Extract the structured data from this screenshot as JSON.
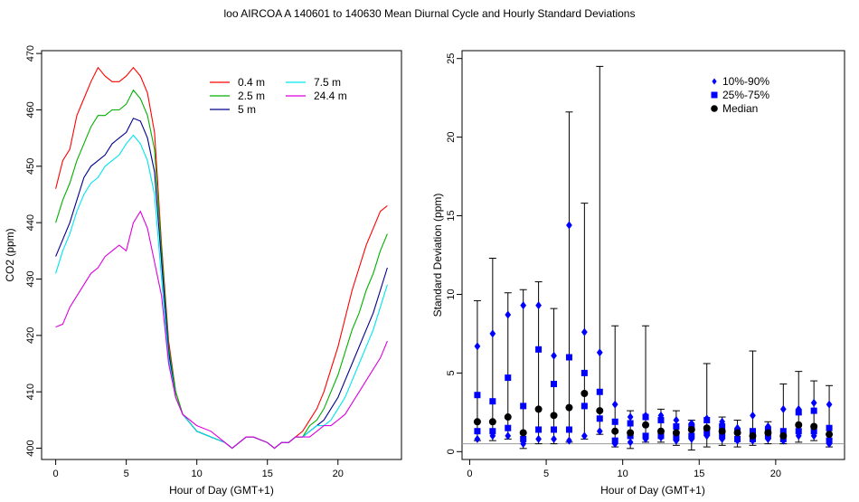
{
  "title": "loo   AIRCOA A   140601 to 140630   Mean Diurnal Cycle and Hourly Standard Deviations",
  "chart_data": [
    {
      "type": "line",
      "xlabel": "Hour of Day (GMT+1)",
      "ylabel": "CO2 (ppm)",
      "xlim": [
        -1,
        24.5
      ],
      "ylim": [
        398,
        470.5
      ],
      "xticks": [
        0,
        5,
        10,
        15,
        20
      ],
      "yticks": [
        400,
        410,
        420,
        430,
        440,
        450,
        460,
        470
      ],
      "legend_position": "top-center",
      "series": [
        {
          "name": "0.4 m",
          "color": "#ff0000",
          "x": [
            0,
            0.5,
            1,
            1.5,
            2,
            2.5,
            3,
            3.5,
            4,
            4.5,
            5,
            5.5,
            6,
            6.5,
            7,
            7.5,
            8,
            8.5,
            9,
            10,
            11,
            12,
            12.5,
            13,
            13.5,
            14,
            15,
            15.5,
            16,
            16.5,
            17,
            17.5,
            18,
            18.5,
            19,
            19.5,
            20,
            20.5,
            21,
            21.5,
            22,
            22.5,
            23,
            23.5
          ],
          "y": [
            446,
            451,
            453,
            459,
            462,
            465,
            467.5,
            466,
            465,
            465,
            466,
            467.5,
            466,
            463,
            456,
            436,
            419,
            410,
            406,
            403,
            402,
            401,
            400,
            401,
            402,
            402,
            401,
            400,
            401,
            401,
            402,
            403,
            405,
            407,
            410,
            414,
            418,
            423,
            428,
            432,
            436,
            439,
            442,
            443
          ]
        },
        {
          "name": "2.5 m",
          "color": "#00b000",
          "x": [
            0,
            0.5,
            1,
            1.5,
            2,
            2.5,
            3,
            3.5,
            4,
            4.5,
            5,
            5.5,
            6,
            6.5,
            7,
            7.5,
            8,
            8.5,
            9,
            10,
            11,
            12,
            12.5,
            13,
            13.5,
            14,
            15,
            15.5,
            16,
            16.5,
            17,
            17.5,
            18,
            18.5,
            19,
            19.5,
            20,
            20.5,
            21,
            21.5,
            22,
            22.5,
            23,
            23.5
          ],
          "y": [
            440,
            444,
            447,
            451,
            454,
            457,
            459,
            459,
            460,
            460,
            461,
            463.5,
            462,
            459,
            453,
            435,
            418,
            410,
            406,
            403,
            402,
            401,
            400,
            401,
            402,
            402,
            401,
            400,
            401,
            401,
            402,
            402,
            404,
            405,
            407,
            410,
            413,
            417,
            421,
            424,
            428,
            431,
            435,
            438
          ]
        },
        {
          "name": "5 m",
          "color": "#00008b",
          "x": [
            0,
            0.5,
            1,
            1.5,
            2,
            2.5,
            3,
            3.5,
            4,
            4.5,
            5,
            5.5,
            6,
            6.5,
            7,
            7.5,
            8,
            8.5,
            9,
            10,
            11,
            12,
            12.5,
            13,
            13.5,
            14,
            15,
            15.5,
            16,
            16.5,
            17,
            17.5,
            18,
            18.5,
            19,
            19.5,
            20,
            20.5,
            21,
            21.5,
            22,
            22.5,
            23,
            23.5
          ],
          "y": [
            434,
            437,
            440,
            444,
            448,
            450,
            451,
            452,
            454,
            455,
            456,
            458.5,
            458,
            455,
            449,
            433,
            417,
            409,
            406,
            403,
            402,
            401,
            400,
            401,
            402,
            402,
            401,
            400,
            401,
            401,
            402,
            402,
            403,
            404,
            405,
            407,
            409,
            412,
            415,
            418,
            421,
            424,
            428,
            432
          ]
        },
        {
          "name": "7.5 m",
          "color": "#00e5ee",
          "x": [
            0,
            0.5,
            1,
            1.5,
            2,
            2.5,
            3,
            3.5,
            4,
            4.5,
            5,
            5.5,
            6,
            6.5,
            7,
            7.5,
            8,
            8.5,
            9,
            10,
            11,
            12,
            12.5,
            13,
            13.5,
            14,
            15,
            15.5,
            16,
            16.5,
            17,
            17.5,
            18,
            18.5,
            19,
            19.5,
            20,
            20.5,
            21,
            21.5,
            22,
            22.5,
            23,
            23.5
          ],
          "y": [
            431,
            435,
            438,
            442,
            445,
            447,
            448,
            450,
            451,
            452,
            454,
            455.5,
            454,
            451,
            445,
            430,
            416,
            409,
            406,
            403,
            402,
            401,
            400,
            401,
            402,
            402,
            401,
            400,
            401,
            401,
            402,
            402,
            403,
            404,
            404,
            405,
            407,
            409,
            412,
            415,
            418,
            421,
            425,
            429
          ]
        },
        {
          "name": "24.4 m",
          "color": "#dd00dd",
          "x": [
            0,
            0.5,
            1,
            1.5,
            2,
            2.5,
            3,
            3.5,
            4,
            4.5,
            5,
            5.5,
            6,
            6.5,
            7,
            7.5,
            8,
            8.5,
            9,
            10,
            11,
            12,
            12.5,
            13,
            13.5,
            14,
            15,
            15.5,
            16,
            16.5,
            17,
            17.5,
            18,
            18.5,
            19,
            19.5,
            20,
            20.5,
            21,
            21.5,
            22,
            22.5,
            23,
            23.5
          ],
          "y": [
            421.5,
            422,
            425,
            427,
            429,
            431,
            432,
            434,
            435,
            436,
            435,
            440,
            442,
            439,
            433,
            427,
            415,
            409,
            406,
            404,
            403,
            401,
            400,
            401,
            402,
            402,
            401,
            400,
            401,
            401,
            402,
            402,
            402,
            403,
            404,
            404,
            405,
            406,
            408,
            410,
            412,
            414,
            416,
            419
          ]
        }
      ]
    },
    {
      "type": "scatter",
      "xlabel": "Hour of Day (GMT+1)",
      "ylabel": "Standard Deviation (ppm)",
      "xlim": [
        -0.5,
        24.5
      ],
      "ylim": [
        -0.5,
        25.5
      ],
      "xticks": [
        0,
        5,
        10,
        15,
        20
      ],
      "yticks": [
        0,
        5,
        10,
        15,
        20,
        25
      ],
      "legend_position": "top-right",
      "reference_line": 0.5,
      "legend": [
        {
          "label": "10%-90%",
          "marker": "diamond",
          "color": "#0000ff"
        },
        {
          "label": "25%-75%",
          "marker": "square",
          "color": "#0000ff"
        },
        {
          "label": "Median",
          "marker": "circle",
          "color": "#000000"
        }
      ],
      "hours": [
        0.5,
        1.5,
        2.5,
        3.5,
        4.5,
        5.5,
        6.5,
        7.5,
        8.5,
        9.5,
        10.5,
        11.5,
        12.5,
        13.5,
        14.5,
        15.5,
        16.5,
        17.5,
        18.5,
        19.5,
        20.5,
        21.5,
        22.5,
        23.5
      ],
      "max": [
        9.6,
        12.3,
        10.1,
        10.3,
        10.8,
        9.1,
        21.6,
        15.8,
        24.5,
        8.0,
        2.6,
        8.0,
        2.7,
        2.6,
        2.0,
        5.6,
        2.2,
        2.0,
        6.4,
        1.9,
        4.3,
        5.1,
        4.5,
        4.2
      ],
      "p90": [
        6.7,
        7.5,
        8.7,
        9.3,
        9.3,
        6.1,
        14.4,
        7.6,
        6.3,
        3.0,
        2.2,
        2.3,
        2.3,
        2.0,
        1.8,
        2.1,
        1.9,
        1.5,
        2.3,
        1.6,
        2.7,
        2.7,
        3.1,
        3.0
      ],
      "p75": [
        3.6,
        3.2,
        4.7,
        2.9,
        6.5,
        4.3,
        6.0,
        5.0,
        3.8,
        1.9,
        1.8,
        2.2,
        2.0,
        1.6,
        1.6,
        2.0,
        1.6,
        1.3,
        1.3,
        1.4,
        1.3,
        2.5,
        2.6,
        1.5
      ],
      "median": [
        1.9,
        1.9,
        2.2,
        1.2,
        2.7,
        2.3,
        2.8,
        3.7,
        2.6,
        1.3,
        1.2,
        1.7,
        1.3,
        1.2,
        1.4,
        1.5,
        1.3,
        1.2,
        1.0,
        1.2,
        1.0,
        1.7,
        1.6,
        1.1
      ],
      "p25": [
        1.3,
        1.3,
        1.5,
        0.8,
        1.4,
        1.4,
        1.4,
        2.9,
        2.1,
        0.7,
        1.0,
        1.0,
        1.0,
        0.9,
        1.0,
        1.2,
        1.0,
        0.8,
        0.8,
        1.0,
        0.8,
        1.3,
        1.3,
        0.7
      ],
      "p10": [
        0.8,
        1.0,
        1.0,
        0.5,
        0.8,
        0.8,
        0.7,
        1.0,
        1.3,
        0.5,
        0.6,
        0.8,
        0.9,
        0.7,
        0.8,
        1.0,
        0.8,
        0.7,
        0.7,
        0.8,
        0.7,
        1.0,
        1.0,
        0.5
      ],
      "min": [
        0.7,
        0.7,
        0.8,
        0.2,
        0.5,
        0.5,
        0.6,
        0.8,
        1.1,
        0.3,
        0.2,
        0.6,
        0.6,
        0.4,
        0.1,
        0.3,
        0.4,
        0.3,
        0.4,
        0.5,
        0.5,
        0.6,
        0.7,
        0.3
      ]
    }
  ]
}
